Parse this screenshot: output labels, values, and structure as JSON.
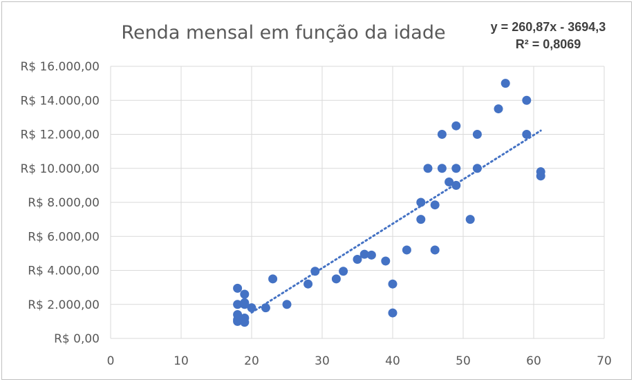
{
  "chart_data": {
    "type": "scatter",
    "title": "Renda mensal em função da idade",
    "xlabel": "",
    "ylabel": "",
    "xlim": [
      0,
      70
    ],
    "ylim": [
      0,
      16000
    ],
    "x_ticks": [
      0,
      10,
      20,
      30,
      40,
      50,
      60,
      70
    ],
    "x_tick_labels": [
      "0",
      "10",
      "20",
      "30",
      "40",
      "50",
      "60",
      "70"
    ],
    "y_ticks": [
      0,
      2000,
      4000,
      6000,
      8000,
      10000,
      12000,
      14000,
      16000
    ],
    "y_tick_labels": [
      "R$ 0,00",
      "R$ 2.000,00",
      "R$ 4.000,00",
      "R$ 6.000,00",
      "R$ 8.000,00",
      "R$ 10.000,00",
      "R$ 12.000,00",
      "R$ 14.000,00",
      "R$ 16.000,00"
    ],
    "grid": true,
    "legend": "none",
    "point_color": "#4472c4",
    "trendline": {
      "type": "linear",
      "slope": 260.87,
      "intercept": -3694.3,
      "x_range": [
        20,
        61
      ],
      "style": "dotted",
      "equation_label": "y = 260,87x - 3694,3",
      "r2_label": "R² = 0,8069"
    },
    "series": [
      {
        "points": [
          [
            18,
            1000
          ],
          [
            18,
            1100
          ],
          [
            18,
            1400
          ],
          [
            18,
            2000
          ],
          [
            18,
            2950
          ],
          [
            19,
            950
          ],
          [
            19,
            1200
          ],
          [
            19,
            2000
          ],
          [
            19,
            2100
          ],
          [
            19,
            2600
          ],
          [
            20,
            1800
          ],
          [
            22,
            1800
          ],
          [
            23,
            3500
          ],
          [
            25,
            2000
          ],
          [
            28,
            3200
          ],
          [
            29,
            3950
          ],
          [
            32,
            3500
          ],
          [
            33,
            3950
          ],
          [
            35,
            4650
          ],
          [
            36,
            4950
          ],
          [
            37,
            4900
          ],
          [
            39,
            4550
          ],
          [
            40,
            3200
          ],
          [
            40,
            1500
          ],
          [
            42,
            5200
          ],
          [
            44,
            8000
          ],
          [
            44,
            7000
          ],
          [
            45,
            10000
          ],
          [
            46,
            7850
          ],
          [
            46,
            5200
          ],
          [
            47,
            12000
          ],
          [
            47,
            10000
          ],
          [
            48,
            9200
          ],
          [
            49,
            12500
          ],
          [
            49,
            10000
          ],
          [
            49,
            9000
          ],
          [
            51,
            7000
          ],
          [
            52,
            12000
          ],
          [
            52,
            10000
          ],
          [
            55,
            13500
          ],
          [
            56,
            15000
          ],
          [
            59,
            14000
          ],
          [
            59,
            12000
          ],
          [
            61,
            9800
          ],
          [
            61,
            9550
          ]
        ]
      }
    ]
  }
}
